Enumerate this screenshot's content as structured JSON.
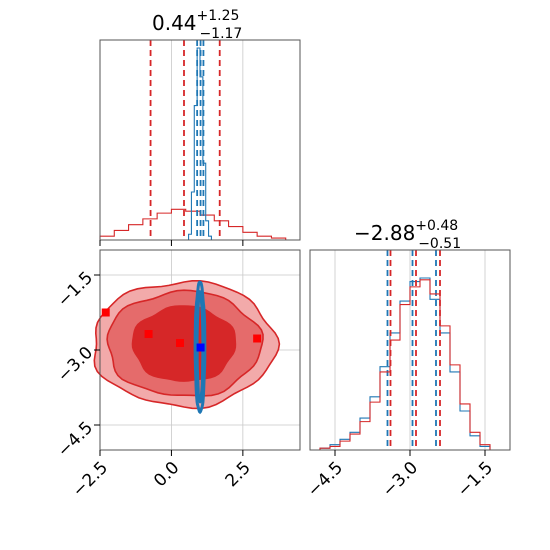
{
  "chart_data": [
    {
      "panel": "marginal-top",
      "type": "histogram",
      "title": {
        "value": "0.44",
        "plus": "+1.25",
        "minus": "−1.17"
      },
      "xlim": [
        -2.5,
        4.5
      ],
      "x_ticks": [
        -2.5,
        0.0,
        2.5
      ],
      "grid": true,
      "series": [
        {
          "color": "#d62728",
          "bin_edges": [
            -2.5,
            -2.0,
            -1.5,
            -1.0,
            -0.5,
            0.0,
            0.5,
            1.0,
            1.5,
            2.0,
            2.5,
            3.0,
            3.5,
            4.0,
            4.5
          ],
          "heights": [
            0.02,
            0.05,
            0.08,
            0.11,
            0.14,
            0.16,
            0.15,
            0.13,
            0.1,
            0.07,
            0.04,
            0.02,
            0.01,
            0.0
          ],
          "quantiles": [
            -0.73,
            0.44,
            1.69
          ]
        },
        {
          "color": "#1f77b4",
          "bin_edges": [
            0.6,
            0.7,
            0.8,
            0.9,
            1.0,
            1.1,
            1.2,
            1.3,
            1.4
          ],
          "heights": [
            0.03,
            0.25,
            0.7,
            1.0,
            0.85,
            0.4,
            0.1,
            0.02
          ],
          "quantiles": [
            0.9,
            1.02,
            1.12
          ]
        }
      ]
    },
    {
      "panel": "marginal-right",
      "type": "histogram",
      "title": {
        "value": "−2.88",
        "plus": "+0.48",
        "minus": "−0.51"
      },
      "xlim": [
        -5.0,
        -1.0
      ],
      "x_ticks": [
        -4.5,
        -3.0,
        -1.5
      ],
      "grid": true,
      "series": [
        {
          "color": "#1f77b4",
          "bin_edges": [
            -4.8,
            -4.6,
            -4.4,
            -4.2,
            -4.0,
            -3.8,
            -3.6,
            -3.4,
            -3.2,
            -3.0,
            -2.8,
            -2.6,
            -2.4,
            -2.2,
            -2.0,
            -1.8,
            -1.6,
            -1.4
          ],
          "heights": [
            0.01,
            0.03,
            0.06,
            0.1,
            0.18,
            0.3,
            0.47,
            0.66,
            0.84,
            0.95,
            0.97,
            0.85,
            0.66,
            0.44,
            0.22,
            0.08,
            0.02
          ],
          "quantiles": [
            -3.45,
            -2.95,
            -2.48
          ]
        },
        {
          "color": "#d62728",
          "bin_edges": [
            -4.8,
            -4.6,
            -4.4,
            -4.2,
            -4.0,
            -3.8,
            -3.6,
            -3.4,
            -3.2,
            -3.0,
            -2.8,
            -2.6,
            -2.4,
            -2.2,
            -2.0,
            -1.8,
            -1.6,
            -1.4
          ],
          "heights": [
            0.01,
            0.02,
            0.05,
            0.09,
            0.16,
            0.27,
            0.44,
            0.62,
            0.82,
            0.92,
            0.96,
            0.88,
            0.7,
            0.48,
            0.26,
            0.1,
            0.03
          ],
          "quantiles": [
            -3.39,
            -2.88,
            -2.4
          ]
        }
      ]
    },
    {
      "panel": "joint",
      "type": "contour",
      "xlim": [
        -2.5,
        4.5
      ],
      "ylim": [
        -5.0,
        -1.0
      ],
      "x_ticks": [
        -2.5,
        0.0,
        2.5
      ],
      "y_ticks": [
        -1.5,
        -3.0,
        -4.5
      ],
      "grid": true,
      "series": [
        {
          "color": "#d62728",
          "fill_colors": [
            "#f2aaaa",
            "#e56b6b",
            "#d62728"
          ],
          "center": [
            0.44,
            -2.88
          ],
          "contour_radii": [
            [
              3.2,
              1.25
            ],
            [
              2.7,
              1.05
            ],
            [
              1.8,
              0.75
            ]
          ],
          "markers": [
            [
              -2.3,
              -2.25
            ],
            [
              -0.8,
              -2.68
            ],
            [
              0.3,
              -2.86
            ],
            [
              3.0,
              -2.77
            ]
          ]
        },
        {
          "color": "#1f77b4",
          "center": [
            1.0,
            -2.95
          ],
          "contour_radii": [
            [
              0.17,
              1.3
            ],
            [
              0.1,
              1.1
            ]
          ],
          "markers": [
            [
              1.02,
              -2.95
            ]
          ]
        }
      ]
    }
  ]
}
